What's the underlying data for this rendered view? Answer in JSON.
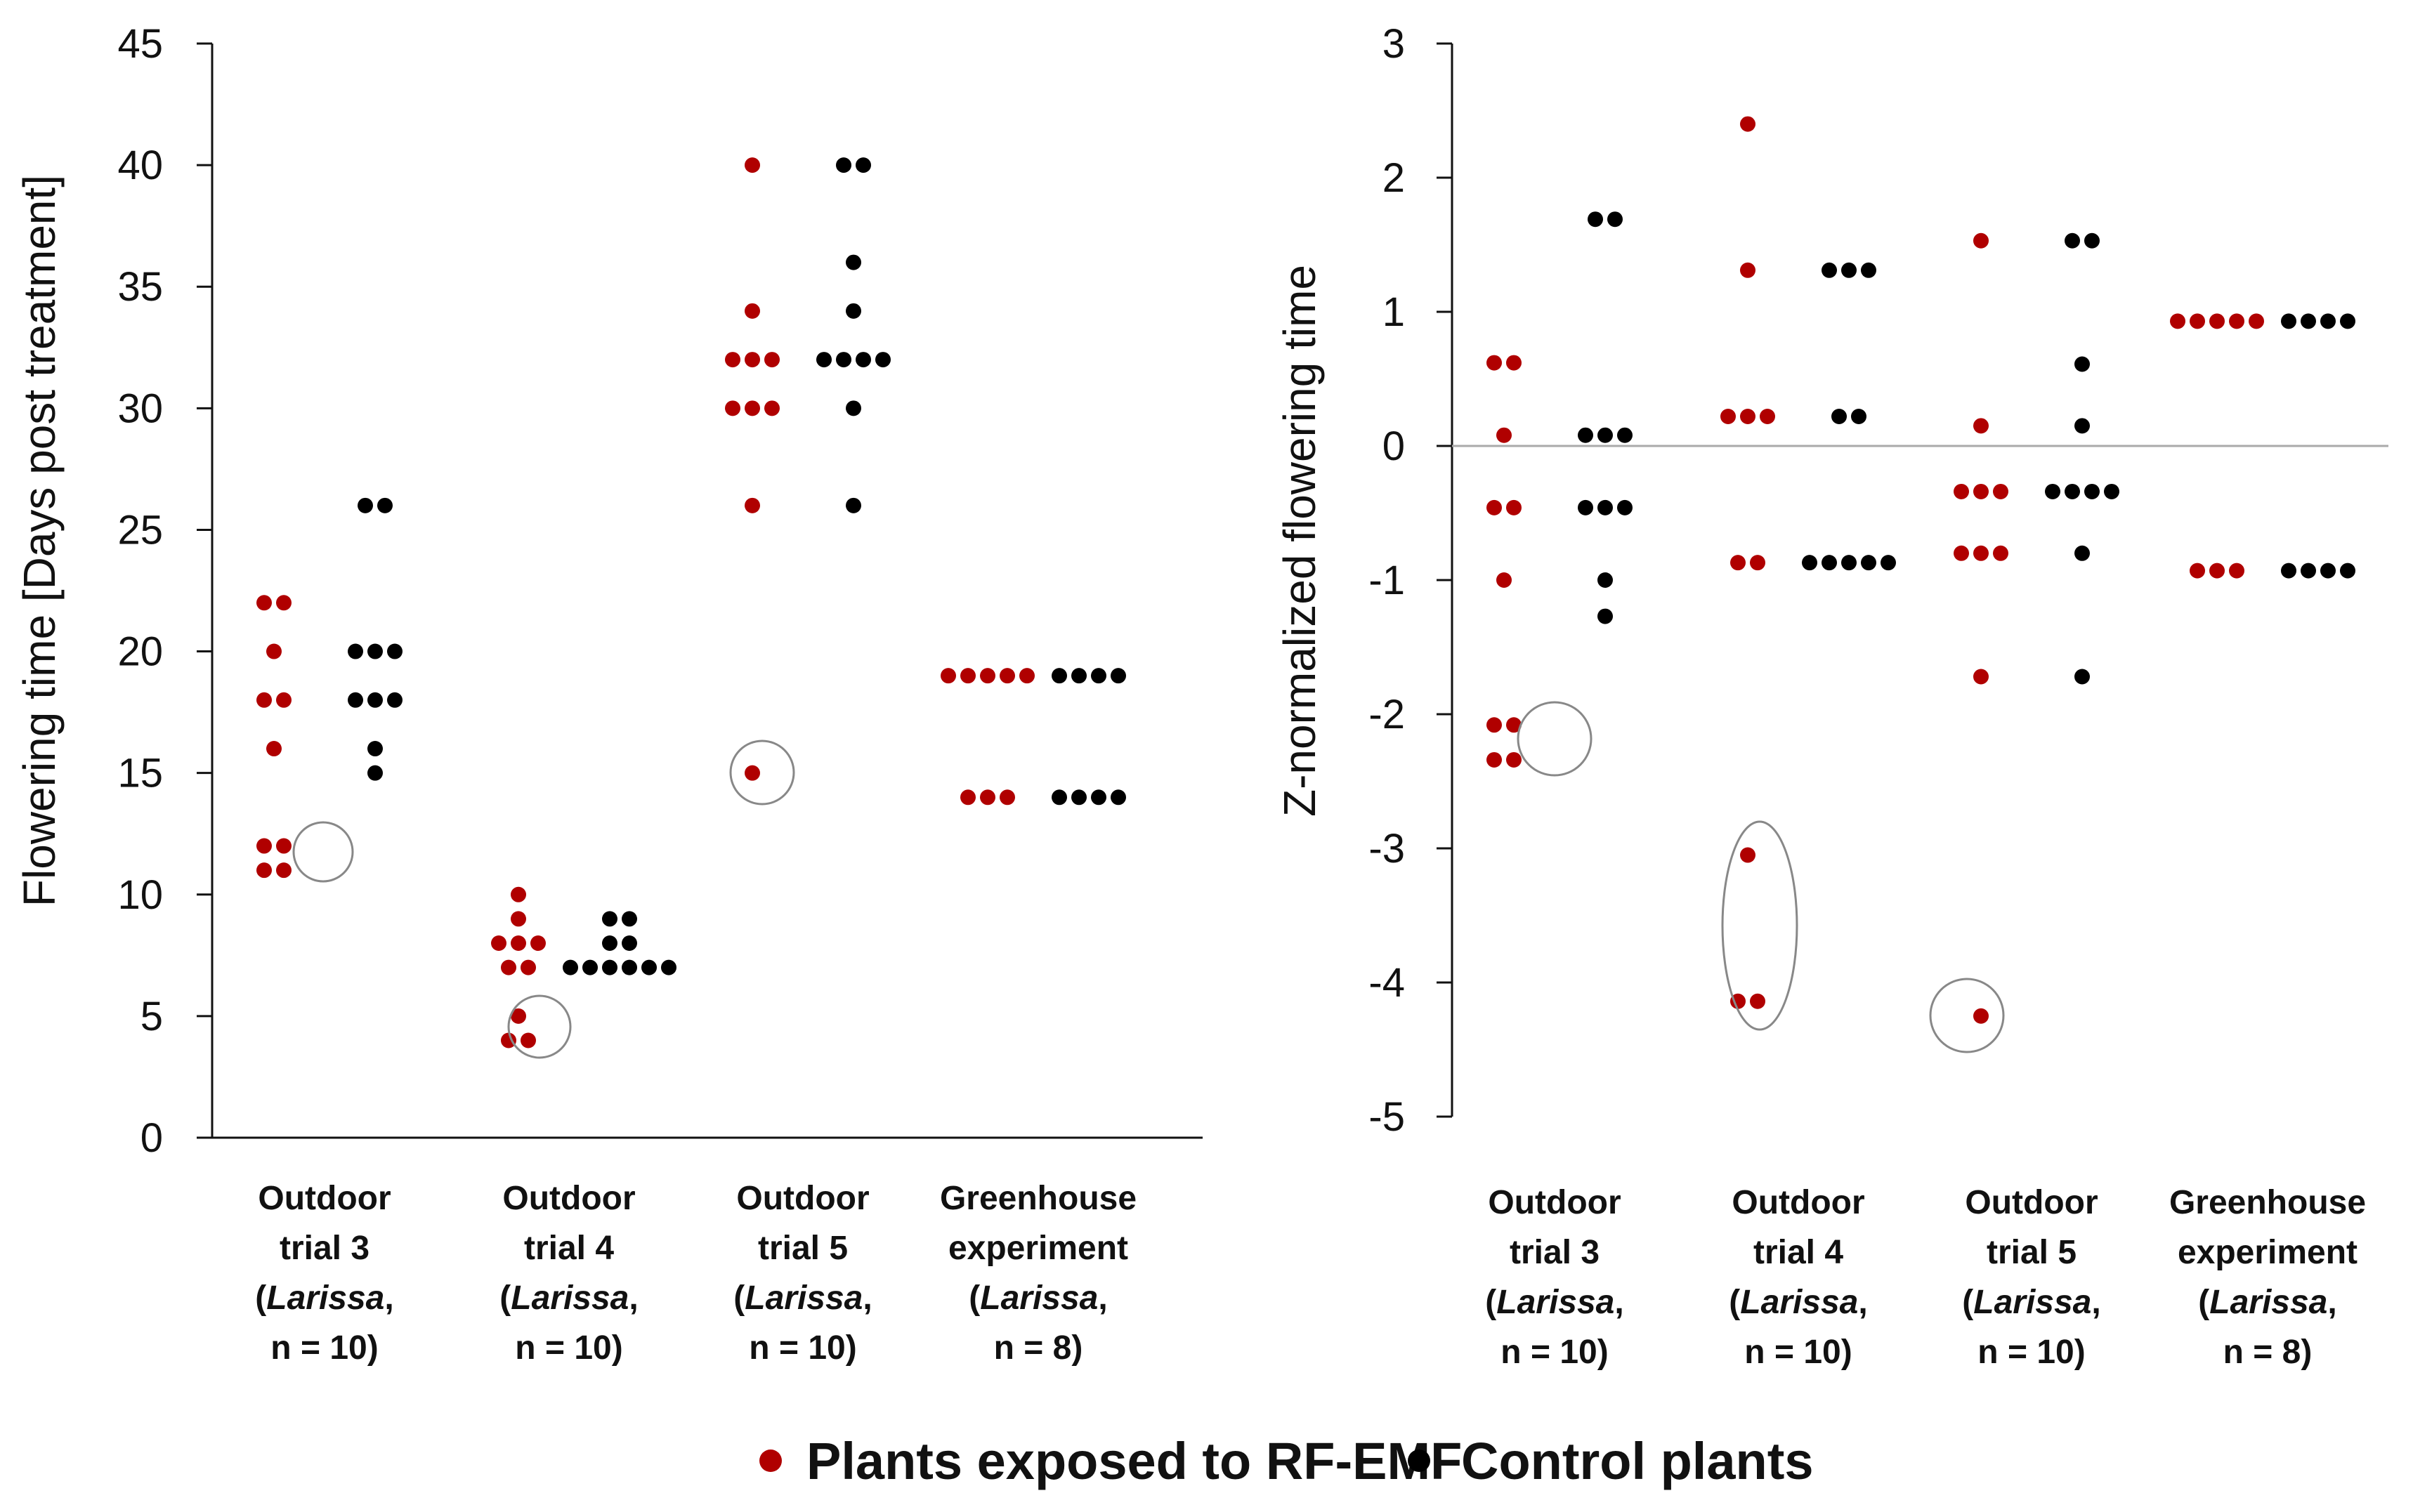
{
  "colors": {
    "exposed": "#b00000",
    "control": "#000000",
    "axis": "#111111",
    "zero_line": "#aaaaaa",
    "circle": "#888888"
  },
  "legend": {
    "exposed_label": "Plants exposed to RF-EMF",
    "control_label": "Control plants"
  },
  "chart_data": [
    {
      "type": "scatter",
      "title": "",
      "xlabel": "",
      "ylabel": "Flowering time [Days post treatment]",
      "ylim": [
        0,
        45
      ],
      "yticks": [
        0,
        5,
        10,
        15,
        20,
        25,
        30,
        35,
        40,
        45
      ],
      "ytick_labels": [
        "0",
        "5",
        "10",
        "15",
        "20",
        "25",
        "30",
        "35",
        "40",
        "45"
      ],
      "zero_line": false,
      "categories": [
        {
          "line1": "Outdoor",
          "line2": "trial 3",
          "italic": "Larissa",
          "n": "n = 10)"
        },
        {
          "line1": "Outdoor",
          "line2": "trial 4",
          "italic": "Larissa",
          "n": "n = 10)"
        },
        {
          "line1": "Outdoor",
          "line2": "trial 5",
          "italic": "Larissa",
          "n": "n = 10)"
        },
        {
          "line1": "Greenhouse",
          "line2": "experiment",
          "italic": "Larissa",
          "n": "n = 8)"
        }
      ],
      "series": [
        {
          "name": "Plants exposed to RF-EMF",
          "values": [
            [
              22,
              22,
              20,
              18,
              18,
              16,
              12,
              12,
              11,
              11
            ],
            [
              10,
              9,
              8,
              8,
              8,
              7,
              7,
              5,
              4,
              4
            ],
            [
              40,
              34,
              32,
              32,
              32,
              30,
              30,
              30,
              26,
              15
            ],
            [
              19,
              19,
              19,
              19,
              19,
              14,
              14,
              14
            ]
          ]
        },
        {
          "name": "Control plants",
          "values": [
            [
              26,
              26,
              20,
              20,
              20,
              18,
              18,
              18,
              16,
              15
            ],
            [
              9,
              9,
              8,
              8,
              7,
              7,
              7,
              7,
              7,
              7
            ],
            [
              40,
              40,
              36,
              34,
              32,
              32,
              32,
              32,
              30,
              26
            ],
            [
              19,
              19,
              19,
              19,
              14,
              14,
              14,
              14
            ]
          ]
        }
      ],
      "highlighted_outliers": [
        {
          "category": "Outdoor trial 3",
          "values": [
            12,
            12,
            11,
            11
          ]
        },
        {
          "category": "Outdoor trial 4",
          "values": [
            5,
            4,
            4
          ]
        },
        {
          "category": "Outdoor trial 5",
          "values": [
            15
          ]
        }
      ]
    },
    {
      "type": "scatter",
      "title": "",
      "xlabel": "",
      "ylabel": "Z-normalized flowering time",
      "ylim": [
        -5,
        3
      ],
      "yticks": [
        -5,
        -4,
        -3,
        -2,
        -1,
        0,
        1,
        2,
        3
      ],
      "ytick_labels": [
        "-5",
        "-4",
        "-3",
        "-2",
        "-1",
        "0",
        "1",
        "2",
        "3"
      ],
      "zero_line": true,
      "categories": [
        {
          "line1": "Outdoor",
          "line2": "trial 3",
          "italic": "Larissa",
          "n": "n = 10)"
        },
        {
          "line1": "Outdoor",
          "line2": "trial 4",
          "italic": "Larissa",
          "n": "n = 10)"
        },
        {
          "line1": "Outdoor",
          "line2": "trial 5",
          "italic": "Larissa",
          "n": "n = 10)"
        },
        {
          "line1": "Greenhouse",
          "line2": "experiment",
          "italic": "Larissa",
          "n": "n = 8)"
        }
      ],
      "series": [
        {
          "name": "Plants exposed to RF-EMF",
          "values": [
            [
              0.62,
              0.62,
              0.08,
              -0.46,
              -0.46,
              -1.0,
              -2.08,
              -2.08,
              -2.34,
              -2.34
            ],
            [
              2.4,
              1.31,
              0.22,
              0.22,
              0.22,
              -0.87,
              -0.87,
              -3.05,
              -4.14,
              -4.14
            ],
            [
              1.53,
              0.15,
              -0.34,
              -0.34,
              -0.34,
              -0.8,
              -0.8,
              -0.8,
              -1.72,
              -4.25
            ],
            [
              0.93,
              0.93,
              0.93,
              0.93,
              0.93,
              -0.93,
              -0.93,
              -0.93
            ]
          ]
        },
        {
          "name": "Control plants",
          "values": [
            [
              1.69,
              1.69,
              0.08,
              0.08,
              0.08,
              -0.46,
              -0.46,
              -0.46,
              -1.0,
              -1.27
            ],
            [
              1.31,
              1.31,
              1.31,
              0.22,
              0.22,
              -0.87,
              -0.87,
              -0.87,
              -0.87,
              -0.87
            ],
            [
              1.53,
              1.53,
              0.61,
              0.15,
              -0.34,
              -0.34,
              -0.34,
              -0.34,
              -0.8,
              -1.72
            ],
            [
              0.93,
              0.93,
              0.93,
              0.93,
              -0.93,
              -0.93,
              -0.93,
              -0.93
            ]
          ]
        }
      ],
      "highlighted_outliers": [
        {
          "category": "Outdoor trial 3",
          "values": [
            -2.08,
            -2.08,
            -2.34,
            -2.34
          ]
        },
        {
          "category": "Outdoor trial 4",
          "values": [
            -3.05,
            -4.14,
            -4.14
          ]
        },
        {
          "category": "Outdoor trial 5",
          "values": [
            -4.25
          ]
        }
      ]
    }
  ]
}
